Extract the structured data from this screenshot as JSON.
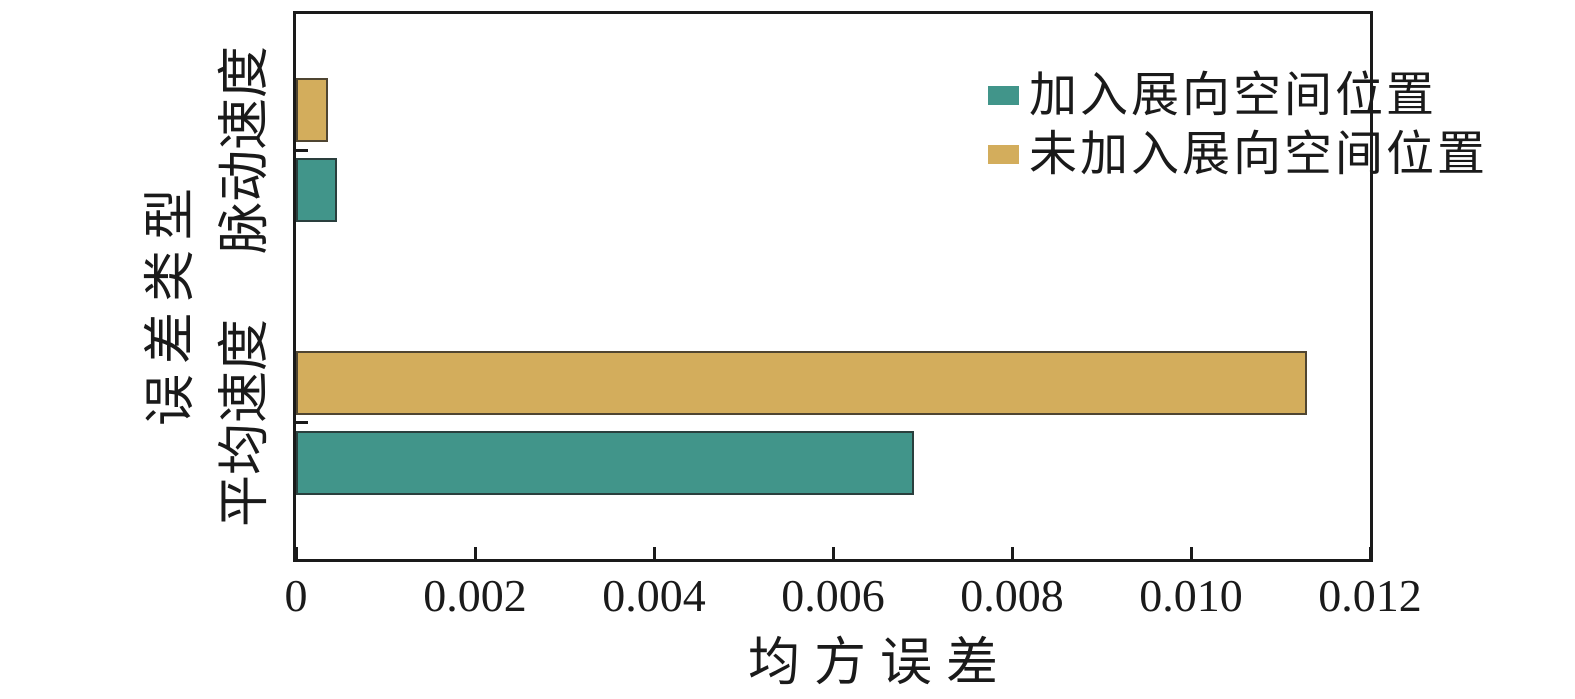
{
  "chart_data": {
    "type": "bar",
    "orientation": "horizontal",
    "title": "",
    "xlabel": "均方误差",
    "ylabel": "误差类型",
    "categories": [
      "脉动速度",
      "平均速度"
    ],
    "xlim": [
      0,
      0.012
    ],
    "x_ticks": [
      0,
      0.002,
      0.004,
      0.006,
      0.008,
      0.01,
      0.012
    ],
    "x_tick_labels": [
      "0",
      "0.002",
      "0.004",
      "0.006",
      "0.008",
      "0.010",
      "0.012"
    ],
    "series": [
      {
        "name": "加入展向空间位置",
        "color": "#41958a",
        "values": [
          0.00046,
          0.0069
        ]
      },
      {
        "name": "未加入展向空间位置",
        "color": "#d3ad5c",
        "values": [
          0.00036,
          0.0113
        ]
      }
    ],
    "legend_position": "upper center inside",
    "grid": false,
    "frame": true,
    "tick_direction": "in",
    "axis_color": "#1a1a1a"
  }
}
